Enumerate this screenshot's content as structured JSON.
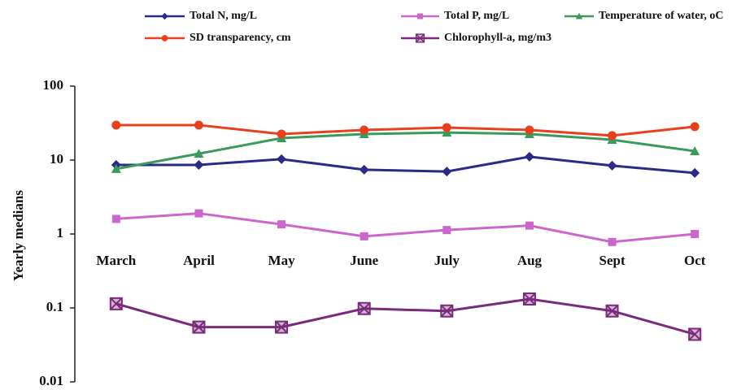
{
  "chart_data": {
    "type": "line",
    "y_label": "Yearly medians",
    "categories": [
      "March",
      "April",
      "May",
      "June",
      "July",
      "Aug",
      "Sept",
      "Oct"
    ],
    "ylim": [
      0.01,
      100
    ],
    "yticks": [
      0.01,
      0.1,
      1,
      10,
      100
    ],
    "log_y": true,
    "grid": false,
    "legend": "top",
    "series": [
      {
        "name": "Total N, mg/L",
        "color": "#2b2b86",
        "marker": "diamond",
        "values": [
          8.6,
          8.6,
          10.3,
          7.4,
          7.0,
          11.1,
          8.4,
          6.7
        ]
      },
      {
        "name": "Total P, mg/L",
        "color": "#cc66cc",
        "marker": "square",
        "values": [
          1.6,
          1.9,
          1.35,
          0.93,
          1.13,
          1.3,
          0.78,
          1.0
        ]
      },
      {
        "name": "Temperature of water, oC",
        "color": "#3a9a5a",
        "marker": "triangle",
        "values": [
          7.6,
          12.2,
          19.8,
          22.5,
          23.6,
          22.5,
          18.8,
          13.2
        ]
      },
      {
        "name": "SD transparency, cm",
        "color": "#e8401c",
        "marker": "circle",
        "values": [
          29.7,
          29.7,
          22.5,
          25.5,
          27.5,
          25.5,
          21.4,
          28.3
        ]
      },
      {
        "name": "Chlorophyll-a, mg/m3",
        "color": "#7a2a7a",
        "marker": "xsquare",
        "values": [
          0.114,
          0.055,
          0.055,
          0.098,
          0.091,
          0.132,
          0.091,
          0.044
        ]
      }
    ]
  }
}
